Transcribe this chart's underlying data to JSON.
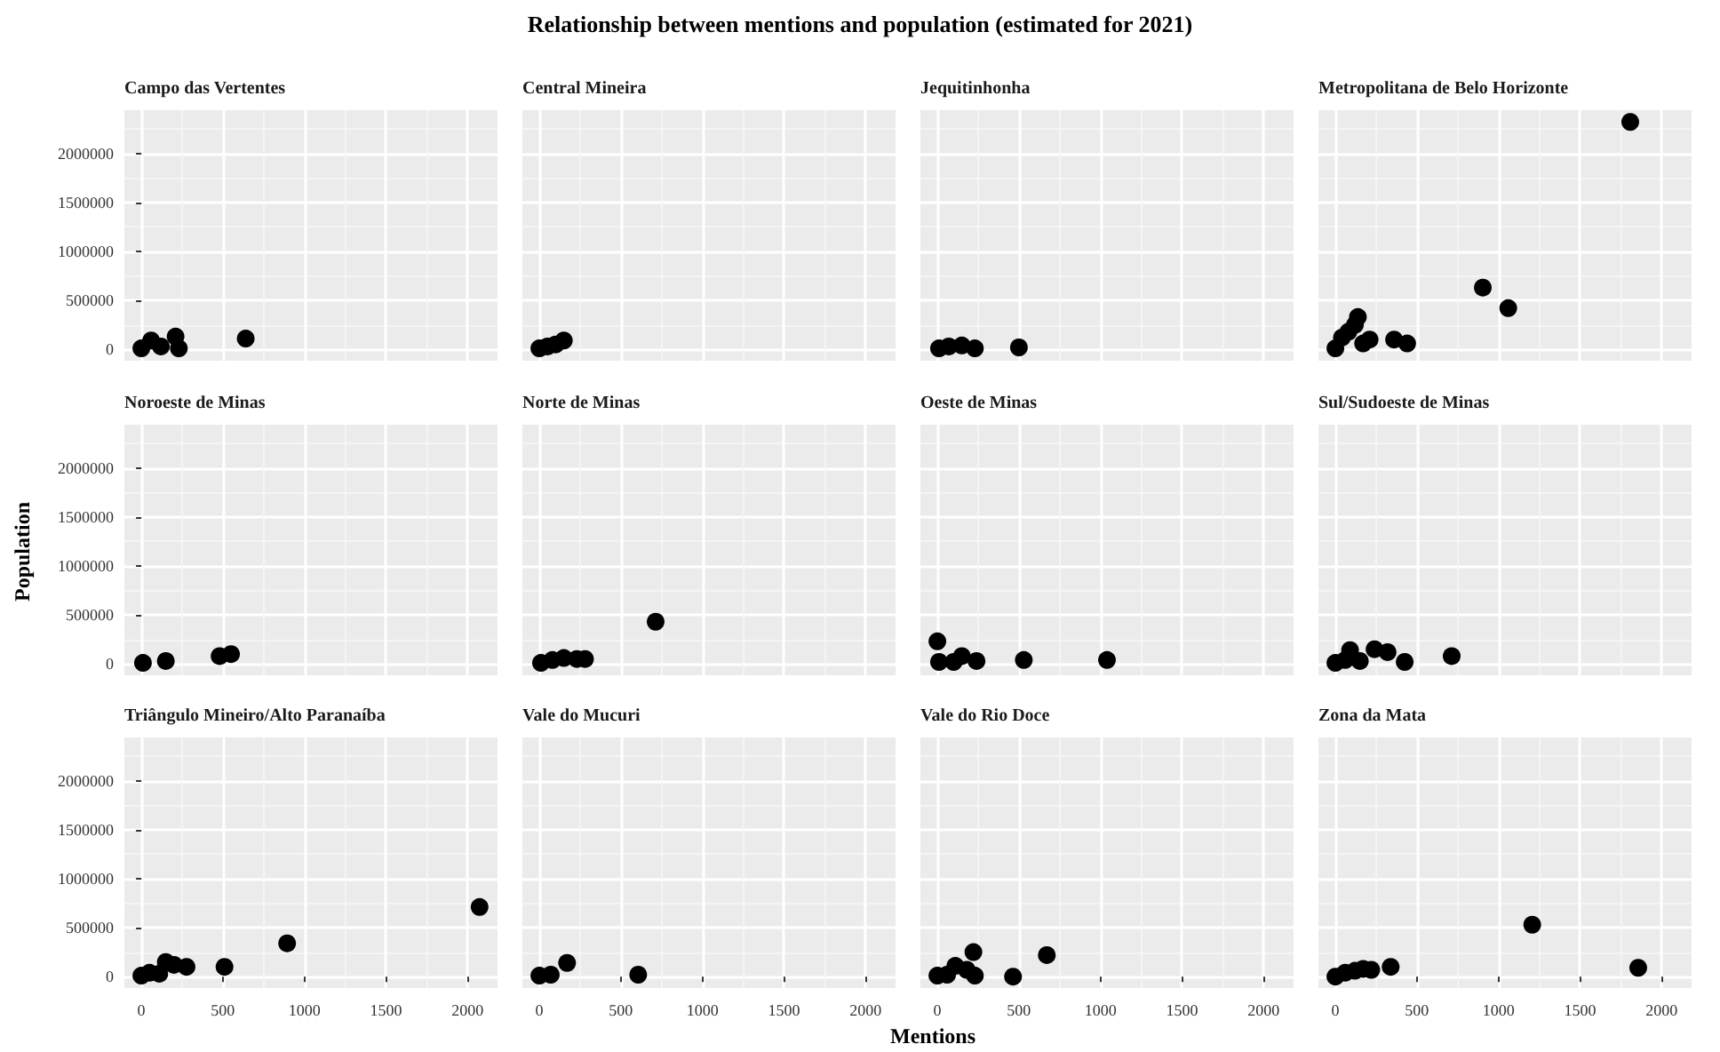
{
  "chart_data": [
    {
      "type": "scatter",
      "title": "Campo das Vertentes",
      "x": [
        0,
        60,
        120,
        210,
        230,
        640
      ],
      "values": [
        10000,
        90000,
        30000,
        130000,
        10000,
        110000
      ],
      "color": "#000000",
      "marker": "circle",
      "xlim": [
        -104,
        2184
      ],
      "ylim": [
        -116000,
        2440000
      ],
      "xticks": [
        0,
        500,
        1000,
        1500,
        2000
      ],
      "yticks": [
        0,
        500000,
        1000000,
        1500000,
        2000000
      ],
      "grid": true,
      "tick_labels": "y"
    },
    {
      "type": "scatter",
      "title": "Central Mineira",
      "annotations": [
        "Relationship between mentions and population (estimated for 2021)"
      ],
      "x": [
        0,
        50,
        100,
        150
      ],
      "values": [
        10000,
        30000,
        50000,
        90000
      ],
      "color": "#000000",
      "marker": "circle",
      "xlim": [
        -104,
        2184
      ],
      "ylim": [
        -116000,
        2440000
      ],
      "xticks": [
        0,
        500,
        1000,
        1500,
        2000
      ],
      "yticks": [
        0,
        500000,
        1000000,
        1500000,
        2000000
      ],
      "grid": true,
      "tick_labels": false
    },
    {
      "type": "scatter",
      "title": "Jequitinhonha",
      "x": [
        10,
        70,
        150,
        230,
        500
      ],
      "values": [
        10000,
        30000,
        40000,
        10000,
        20000
      ],
      "color": "#000000",
      "marker": "circle",
      "xlim": [
        -104,
        2184
      ],
      "ylim": [
        -116000,
        2440000
      ],
      "xticks": [
        0,
        500,
        1000,
        1500,
        2000
      ],
      "yticks": [
        0,
        500000,
        1000000,
        1500000,
        2000000
      ],
      "grid": true,
      "tick_labels": false
    },
    {
      "type": "scatter",
      "title": "Metropolitana de Belo Horizonte",
      "x": [
        0,
        40,
        80,
        120,
        138,
        170,
        210,
        360,
        440,
        904,
        1060,
        1808
      ],
      "values": [
        10000,
        120000,
        180000,
        250000,
        330000,
        60000,
        100000,
        100000,
        60000,
        630000,
        420000,
        2320000
      ],
      "color": "#000000",
      "marker": "circle",
      "xlim": [
        -104,
        2184
      ],
      "ylim": [
        -116000,
        2440000
      ],
      "xticks": [
        0,
        500,
        1000,
        1500,
        2000
      ],
      "yticks": [
        0,
        500000,
        1000000,
        1500000,
        2000000
      ],
      "grid": true,
      "tick_labels": false
    },
    {
      "type": "scatter",
      "title": "Noroeste de Minas",
      "ylabel": "Population",
      "x": [
        10,
        150,
        480,
        550
      ],
      "values": [
        10000,
        30000,
        80000,
        100000
      ],
      "color": "#000000",
      "marker": "circle",
      "xlim": [
        -104,
        2184
      ],
      "ylim": [
        -116000,
        2440000
      ],
      "xticks": [
        0,
        500,
        1000,
        1500,
        2000
      ],
      "yticks": [
        0,
        500000,
        1000000,
        1500000,
        2000000
      ],
      "grid": true,
      "tick_labels": "y"
    },
    {
      "type": "scatter",
      "title": "Norte de Minas",
      "x": [
        10,
        80,
        150,
        230,
        280,
        713
      ],
      "values": [
        10000,
        40000,
        60000,
        50000,
        50000,
        430000
      ],
      "color": "#000000",
      "marker": "circle",
      "xlim": [
        -104,
        2184
      ],
      "ylim": [
        -116000,
        2440000
      ],
      "xticks": [
        0,
        500,
        1000,
        1500,
        2000
      ],
      "yticks": [
        0,
        500000,
        1000000,
        1500000,
        2000000
      ],
      "grid": true,
      "tick_labels": false
    },
    {
      "type": "scatter",
      "title": "Oeste de Minas",
      "x": [
        0,
        10,
        100,
        150,
        240,
        530,
        1040
      ],
      "values": [
        230000,
        20000,
        20000,
        80000,
        30000,
        40000,
        40000
      ],
      "color": "#000000",
      "marker": "circle",
      "xlim": [
        -104,
        2184
      ],
      "ylim": [
        -116000,
        2440000
      ],
      "xticks": [
        0,
        500,
        1000,
        1500,
        2000
      ],
      "yticks": [
        0,
        500000,
        1000000,
        1500000,
        2000000
      ],
      "grid": true,
      "tick_labels": false
    },
    {
      "type": "scatter",
      "title": "Sul/Sudoeste de Minas",
      "x": [
        0,
        60,
        90,
        150,
        240,
        320,
        425,
        713
      ],
      "values": [
        10000,
        40000,
        140000,
        30000,
        150000,
        120000,
        20000,
        80000
      ],
      "color": "#000000",
      "marker": "circle",
      "xlim": [
        -104,
        2184
      ],
      "ylim": [
        -116000,
        2440000
      ],
      "xticks": [
        0,
        500,
        1000,
        1500,
        2000
      ],
      "yticks": [
        0,
        500000,
        1000000,
        1500000,
        2000000
      ],
      "grid": true,
      "tick_labels": false
    },
    {
      "type": "scatter",
      "title": "Triângulo Mineiro/Alto Paranaíba",
      "x": [
        0,
        50,
        110,
        150,
        200,
        277,
        510,
        894,
        2074
      ],
      "values": [
        10000,
        40000,
        30000,
        150000,
        120000,
        100000,
        100000,
        340000,
        710000
      ],
      "color": "#000000",
      "marker": "circle",
      "xlim": [
        -104,
        2184
      ],
      "ylim": [
        -116000,
        2440000
      ],
      "xticks": [
        0,
        500,
        1000,
        1500,
        2000
      ],
      "yticks": [
        0,
        500000,
        1000000,
        1500000,
        2000000
      ],
      "grid": true
    },
    {
      "type": "scatter",
      "title": "Vale do Mucuri",
      "x": [
        0,
        70,
        170,
        606
      ],
      "values": [
        10000,
        20000,
        140000,
        20000
      ],
      "color": "#000000",
      "marker": "circle",
      "xlim": [
        -104,
        2184
      ],
      "ylim": [
        -116000,
        2440000
      ],
      "xticks": [
        0,
        500,
        1000,
        1500,
        2000
      ],
      "yticks": [
        0,
        500000,
        1000000,
        1500000,
        2000000
      ],
      "grid": true,
      "tick_labels": "x"
    },
    {
      "type": "scatter",
      "title": "Vale do Rio Doce",
      "xlabel": "Mentions",
      "x": [
        0,
        60,
        110,
        180,
        221,
        230,
        464,
        671
      ],
      "values": [
        10000,
        20000,
        110000,
        70000,
        250000,
        10000,
        0,
        220000
      ],
      "color": "#000000",
      "marker": "circle",
      "xlim": [
        -104,
        2184
      ],
      "ylim": [
        -116000,
        2440000
      ],
      "xticks": [
        0,
        500,
        1000,
        1500,
        2000
      ],
      "yticks": [
        0,
        500000,
        1000000,
        1500000,
        2000000
      ],
      "grid": true,
      "tick_labels": "x"
    },
    {
      "type": "scatter",
      "title": "Zona da Mata",
      "x": [
        0,
        60,
        120,
        170,
        220,
        339,
        1207,
        1857
      ],
      "values": [
        0,
        40000,
        60000,
        80000,
        70000,
        100000,
        530000,
        90000
      ],
      "color": "#000000",
      "marker": "circle",
      "xlim": [
        -104,
        2184
      ],
      "ylim": [
        -116000,
        2440000
      ],
      "xticks": [
        0,
        500,
        1000,
        1500,
        2000
      ],
      "yticks": [
        0,
        500000,
        1000000,
        1500000,
        2000000
      ],
      "grid": true,
      "tick_labels": "x"
    }
  ]
}
